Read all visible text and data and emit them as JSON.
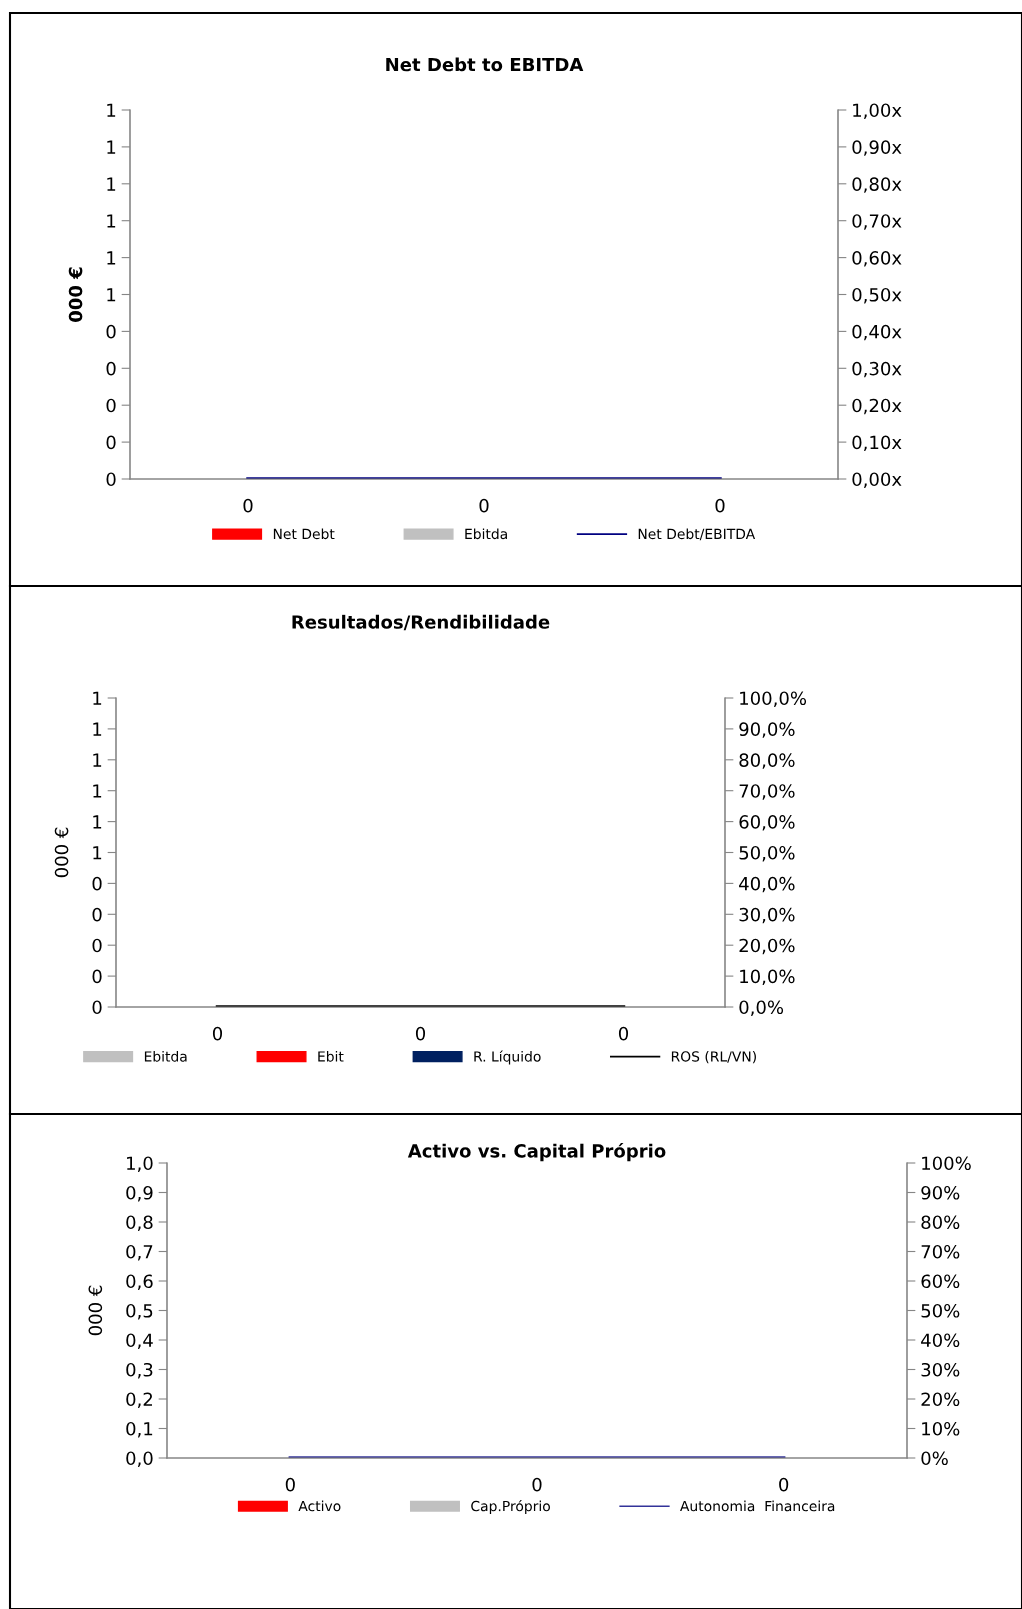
{
  "chart_data": [
    {
      "type": "bar",
      "title": "Net Debt to EBITDA",
      "ylabel": "000 €",
      "categories": [
        "0",
        "0",
        "0"
      ],
      "series": [
        {
          "name": "Net Debt",
          "color": "#ff0000",
          "values": [
            0,
            0,
            0
          ]
        },
        {
          "name": "Ebitda",
          "color": "#c0c0c0",
          "values": [
            0,
            0,
            0
          ]
        },
        {
          "name": "Net Debt/EBITDA",
          "type": "line",
          "axis": "y2",
          "color": "#000080",
          "values": [
            0,
            0,
            0
          ]
        }
      ],
      "ylim": [
        0,
        1
      ],
      "yticks": [
        {
          "value": 0,
          "label": "0"
        },
        {
          "value": 0.1,
          "label": "0"
        },
        {
          "value": 0.2,
          "label": "0"
        },
        {
          "value": 0.3,
          "label": "0"
        },
        {
          "value": 0.4,
          "label": "0"
        },
        {
          "value": 0.5,
          "label": "1"
        },
        {
          "value": 0.6,
          "label": "1"
        },
        {
          "value": 0.7,
          "label": "1"
        },
        {
          "value": 0.8,
          "label": "1"
        },
        {
          "value": 0.9,
          "label": "1"
        },
        {
          "value": 1,
          "label": "1"
        }
      ],
      "y2lim": [
        0,
        1
      ],
      "y2ticks": [
        {
          "value": 0,
          "label": "0,00x"
        },
        {
          "value": 0.1,
          "label": "0,10x"
        },
        {
          "value": 0.2,
          "label": "0,20x"
        },
        {
          "value": 0.3,
          "label": "0,30x"
        },
        {
          "value": 0.4,
          "label": "0,40x"
        },
        {
          "value": 0.5,
          "label": "0,50x"
        },
        {
          "value": 0.6,
          "label": "0,60x"
        },
        {
          "value": 0.7,
          "label": "0,70x"
        },
        {
          "value": 0.8,
          "label": "0,80x"
        },
        {
          "value": 0.9,
          "label": "0,90x"
        },
        {
          "value": 1,
          "label": "1,00x"
        }
      ],
      "legend": "bottom",
      "grid": false
    },
    {
      "type": "bar",
      "title": "Resultados/Rendibilidade",
      "ylabel": "000 €",
      "categories": [
        "0",
        "0",
        "0"
      ],
      "series": [
        {
          "name": "Ebitda",
          "color": "#c0c0c0",
          "values": [
            0,
            0,
            0
          ]
        },
        {
          "name": "Ebit",
          "color": "#ff0000",
          "values": [
            0,
            0,
            0
          ]
        },
        {
          "name": "R. Líquido",
          "color": "#002060",
          "values": [
            0,
            0,
            0
          ]
        },
        {
          "name": "ROS (RL/VN)",
          "type": "line",
          "axis": "y2",
          "color": "#000000",
          "values": [
            0,
            0,
            0
          ]
        }
      ],
      "ylim": [
        0,
        1
      ],
      "yticks": [
        {
          "value": 0,
          "label": "0"
        },
        {
          "value": 0.1,
          "label": "0"
        },
        {
          "value": 0.2,
          "label": "0"
        },
        {
          "value": 0.3,
          "label": "0"
        },
        {
          "value": 0.4,
          "label": "0"
        },
        {
          "value": 0.5,
          "label": "1"
        },
        {
          "value": 0.6,
          "label": "1"
        },
        {
          "value": 0.7,
          "label": "1"
        },
        {
          "value": 0.8,
          "label": "1"
        },
        {
          "value": 0.9,
          "label": "1"
        },
        {
          "value": 1,
          "label": "1"
        }
      ],
      "y2lim": [
        0,
        100
      ],
      "y2ticks": [
        {
          "value": 0,
          "label": "0,0%"
        },
        {
          "value": 10,
          "label": "10,0%"
        },
        {
          "value": 20,
          "label": "20,0%"
        },
        {
          "value": 30,
          "label": "30,0%"
        },
        {
          "value": 40,
          "label": "40,0%"
        },
        {
          "value": 50,
          "label": "50,0%"
        },
        {
          "value": 60,
          "label": "60,0%"
        },
        {
          "value": 70,
          "label": "70,0%"
        },
        {
          "value": 80,
          "label": "80,0%"
        },
        {
          "value": 90,
          "label": "90,0%"
        },
        {
          "value": 100,
          "label": "100,0%"
        }
      ],
      "legend": "bottom",
      "grid": false
    },
    {
      "type": "bar",
      "title": "Activo vs. Capital Próprio",
      "ylabel": "000 €",
      "categories": [
        "0",
        "0",
        "0"
      ],
      "series": [
        {
          "name": "Activo",
          "color": "#ff0000",
          "values": [
            0,
            0,
            0
          ]
        },
        {
          "name": "Cap.Próprio",
          "color": "#c0c0c0",
          "values": [
            0,
            0,
            0
          ]
        },
        {
          "name": "Autonomia  Financeira",
          "type": "line",
          "axis": "y2",
          "color": "#333399",
          "values": [
            0,
            0,
            0
          ]
        }
      ],
      "ylim": [
        0,
        1
      ],
      "yticks": [
        {
          "value": 0,
          "label": "0,0"
        },
        {
          "value": 0.1,
          "label": "0,1"
        },
        {
          "value": 0.2,
          "label": "0,2"
        },
        {
          "value": 0.3,
          "label": "0,3"
        },
        {
          "value": 0.4,
          "label": "0,4"
        },
        {
          "value": 0.5,
          "label": "0,5"
        },
        {
          "value": 0.6,
          "label": "0,6"
        },
        {
          "value": 0.7,
          "label": "0,7"
        },
        {
          "value": 0.8,
          "label": "0,8"
        },
        {
          "value": 0.9,
          "label": "0,9"
        },
        {
          "value": 1,
          "label": "1,0"
        }
      ],
      "y2lim": [
        0,
        100
      ],
      "y2ticks": [
        {
          "value": 0,
          "label": "0%"
        },
        {
          "value": 10,
          "label": "10%"
        },
        {
          "value": 20,
          "label": "20%"
        },
        {
          "value": 30,
          "label": "30%"
        },
        {
          "value": 40,
          "label": "40%"
        },
        {
          "value": 50,
          "label": "50%"
        },
        {
          "value": 60,
          "label": "60%"
        },
        {
          "value": 70,
          "label": "70%"
        },
        {
          "value": 80,
          "label": "80%"
        },
        {
          "value": 90,
          "label": "90%"
        },
        {
          "value": 100,
          "label": "100%"
        }
      ],
      "legend": "bottom",
      "grid": false
    }
  ]
}
